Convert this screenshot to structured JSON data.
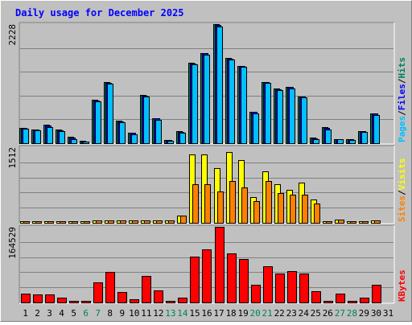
{
  "chart_data": {
    "type": "bar",
    "title": "Daily usage for December 2025",
    "days": [
      "1",
      "2",
      "3",
      "4",
      "5",
      "6",
      "7",
      "8",
      "9",
      "10",
      "11",
      "12",
      "13",
      "14",
      "15",
      "16",
      "17",
      "18",
      "19",
      "20",
      "21",
      "22",
      "23",
      "24",
      "25",
      "26",
      "27",
      "28",
      "29",
      "30",
      "31"
    ],
    "weekend_days": [
      "6",
      "7",
      "13",
      "14",
      "20",
      "21",
      "27",
      "28"
    ],
    "panels": [
      {
        "key": "top",
        "ymax_label": "2228",
        "ymax": 2228,
        "grid_ticks": [
          446,
          891,
          1337,
          1782
        ],
        "legend": [
          {
            "text": "Pages",
            "color": "#00c0ff"
          },
          {
            "text": "/",
            "color": "#000000"
          },
          {
            "text": "Files",
            "color": "#0000ff"
          },
          {
            "text": "/",
            "color": "#000000"
          },
          {
            "text": "Hits",
            "color": "#00805c"
          }
        ],
        "series": [
          {
            "name": "Hits",
            "color": "#00805c",
            "values": [
              290,
              260,
              340,
              250,
              120,
              40,
              810,
              1150,
              420,
              200,
              900,
              470,
              60,
              220,
              1500,
              1690,
              2228,
              1600,
              1450,
              590,
              1150,
              1020,
              1060,
              880,
              100,
              300,
              80,
              80,
              230,
              560,
              0
            ]
          },
          {
            "name": "Files",
            "color": "#0000ff",
            "values": [
              280,
              250,
              330,
              240,
              110,
              35,
              800,
              1130,
              410,
              190,
              890,
              460,
              55,
              210,
              1490,
              1680,
              2210,
              1580,
              1440,
              580,
              1140,
              1010,
              1050,
              870,
              90,
              290,
              75,
              75,
              220,
              550,
              0
            ]
          },
          {
            "name": "Pages",
            "color": "#00c0ff",
            "values": [
              270,
              240,
              300,
              230,
              80,
              30,
              790,
              1110,
              390,
              170,
              870,
              440,
              50,
              200,
              1480,
              1660,
              2180,
              1560,
              1430,
              560,
              1130,
              990,
              1030,
              860,
              80,
              260,
              70,
              60,
              210,
              530,
              0
            ]
          }
        ]
      },
      {
        "key": "middle",
        "ymax_label": "1512",
        "ymax": 1512,
        "grid_ticks": [
          302,
          605,
          907,
          1210
        ],
        "legend": [
          {
            "text": "Sites",
            "color": "#ff8000"
          },
          {
            "text": "/",
            "color": "#000000"
          },
          {
            "text": "Visits",
            "color": "#ffff00"
          }
        ],
        "series": [
          {
            "name": "Visits",
            "color": "#ffff00",
            "values": [
              40,
              40,
              40,
              35,
              35,
              30,
              50,
              50,
              50,
              50,
              50,
              50,
              45,
              140,
              1360,
              1370,
              1100,
              1410,
              1250,
              510,
              1030,
              780,
              660,
              800,
              460,
              40,
              60,
              40,
              40,
              50,
              0
            ]
          },
          {
            "name": "Sites",
            "color": "#ff8000",
            "values": [
              40,
              40,
              40,
              35,
              35,
              30,
              50,
              50,
              50,
              50,
              50,
              50,
              45,
              140,
              780,
              780,
              620,
              830,
              700,
              430,
              830,
              600,
              560,
              570,
              380,
              40,
              60,
              40,
              40,
              50,
              0
            ]
          }
        ]
      },
      {
        "key": "bottom",
        "ymax_label": "164529",
        "ymax": 164529,
        "grid_ticks": [
          32906,
          65812,
          98717,
          131623
        ],
        "legend": [
          {
            "text": "KBytes",
            "color": "#ff0000"
          }
        ],
        "series": [
          {
            "name": "KBytes",
            "color": "#ff0000",
            "values": [
              19000,
              17000,
              17000,
              10000,
              1000,
              1000,
              43000,
              67000,
              23000,
              7000,
              57000,
              27000,
              1000,
              10000,
              100000,
              115000,
              164529,
              106000,
              95000,
              38000,
              78000,
              63000,
              69000,
              63000,
              24000,
              1000,
              20000,
              1000,
              11000,
              39000,
              0
            ]
          }
        ]
      }
    ]
  }
}
